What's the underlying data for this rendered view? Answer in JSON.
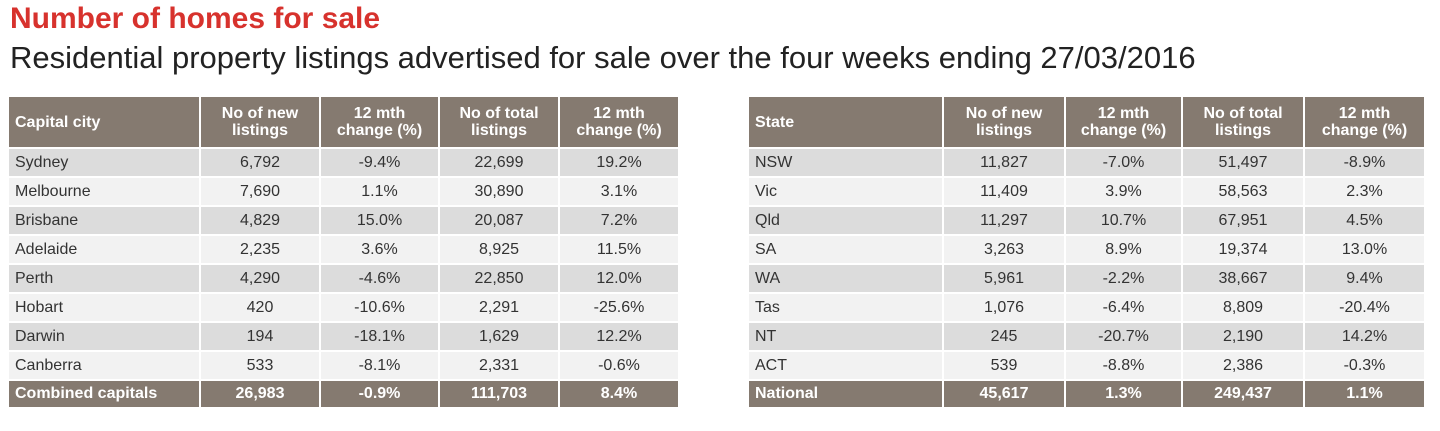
{
  "title": "Number of homes for sale",
  "subtitle": "Residential property listings advertised for sale over the four weeks ending 27/03/2016",
  "capital_table": {
    "headers": {
      "label": "Capital city",
      "new_listings_line1": "No of new",
      "new_listings_line2": "listings",
      "new_change_line1": "12 mth",
      "new_change_line2": "change (%)",
      "total_listings_line1": "No of total",
      "total_listings_line2": "listings",
      "total_change_line1": "12 mth",
      "total_change_line2": "change (%)"
    },
    "rows": [
      {
        "name": "Sydney",
        "new_listings": "6,792",
        "new_change": "-9.4%",
        "total_listings": "22,699",
        "total_change": "19.2%"
      },
      {
        "name": "Melbourne",
        "new_listings": "7,690",
        "new_change": "1.1%",
        "total_listings": "30,890",
        "total_change": "3.1%"
      },
      {
        "name": "Brisbane",
        "new_listings": "4,829",
        "new_change": "15.0%",
        "total_listings": "20,087",
        "total_change": "7.2%"
      },
      {
        "name": "Adelaide",
        "new_listings": "2,235",
        "new_change": "3.6%",
        "total_listings": "8,925",
        "total_change": "11.5%"
      },
      {
        "name": "Perth",
        "new_listings": "4,290",
        "new_change": "-4.6%",
        "total_listings": "22,850",
        "total_change": "12.0%"
      },
      {
        "name": "Hobart",
        "new_listings": "420",
        "new_change": "-10.6%",
        "total_listings": "2,291",
        "total_change": "-25.6%"
      },
      {
        "name": "Darwin",
        "new_listings": "194",
        "new_change": "-18.1%",
        "total_listings": "1,629",
        "total_change": "12.2%"
      },
      {
        "name": "Canberra",
        "new_listings": "533",
        "new_change": "-8.1%",
        "total_listings": "2,331",
        "total_change": "-0.6%"
      }
    ],
    "total": {
      "name": "Combined capitals",
      "new_listings": "26,983",
      "new_change": "-0.9%",
      "total_listings": "111,703",
      "total_change": "8.4%"
    }
  },
  "state_table": {
    "headers": {
      "label": "State",
      "new_listings_line1": "No of new",
      "new_listings_line2": "listings",
      "new_change_line1": "12 mth",
      "new_change_line2": "change (%)",
      "total_listings_line1": "No of total",
      "total_listings_line2": "listings",
      "total_change_line1": "12 mth",
      "total_change_line2": "change (%)"
    },
    "rows": [
      {
        "name": "NSW",
        "new_listings": "11,827",
        "new_change": "-7.0%",
        "total_listings": "51,497",
        "total_change": "-8.9%"
      },
      {
        "name": "Vic",
        "new_listings": "11,409",
        "new_change": "3.9%",
        "total_listings": "58,563",
        "total_change": "2.3%"
      },
      {
        "name": "Qld",
        "new_listings": "11,297",
        "new_change": "10.7%",
        "total_listings": "67,951",
        "total_change": "4.5%"
      },
      {
        "name": "SA",
        "new_listings": "3,263",
        "new_change": "8.9%",
        "total_listings": "19,374",
        "total_change": "13.0%"
      },
      {
        "name": "WA",
        "new_listings": "5,961",
        "new_change": "-2.2%",
        "total_listings": "38,667",
        "total_change": "9.4%"
      },
      {
        "name": "Tas",
        "new_listings": "1,076",
        "new_change": "-6.4%",
        "total_listings": "8,809",
        "total_change": "-20.4%"
      },
      {
        "name": "NT",
        "new_listings": "245",
        "new_change": "-20.7%",
        "total_listings": "2,190",
        "total_change": "14.2%"
      },
      {
        "name": "ACT",
        "new_listings": "539",
        "new_change": "-8.8%",
        "total_listings": "2,386",
        "total_change": "-0.3%"
      }
    ],
    "total": {
      "name": "National",
      "new_listings": "45,617",
      "new_change": "1.3%",
      "total_listings": "249,437",
      "total_change": "1.1%"
    }
  },
  "colors": {
    "title": "#d7322d",
    "header_bg": "#857a70",
    "row_odd": "#dcdcdc",
    "row_even": "#f2f2f2"
  }
}
